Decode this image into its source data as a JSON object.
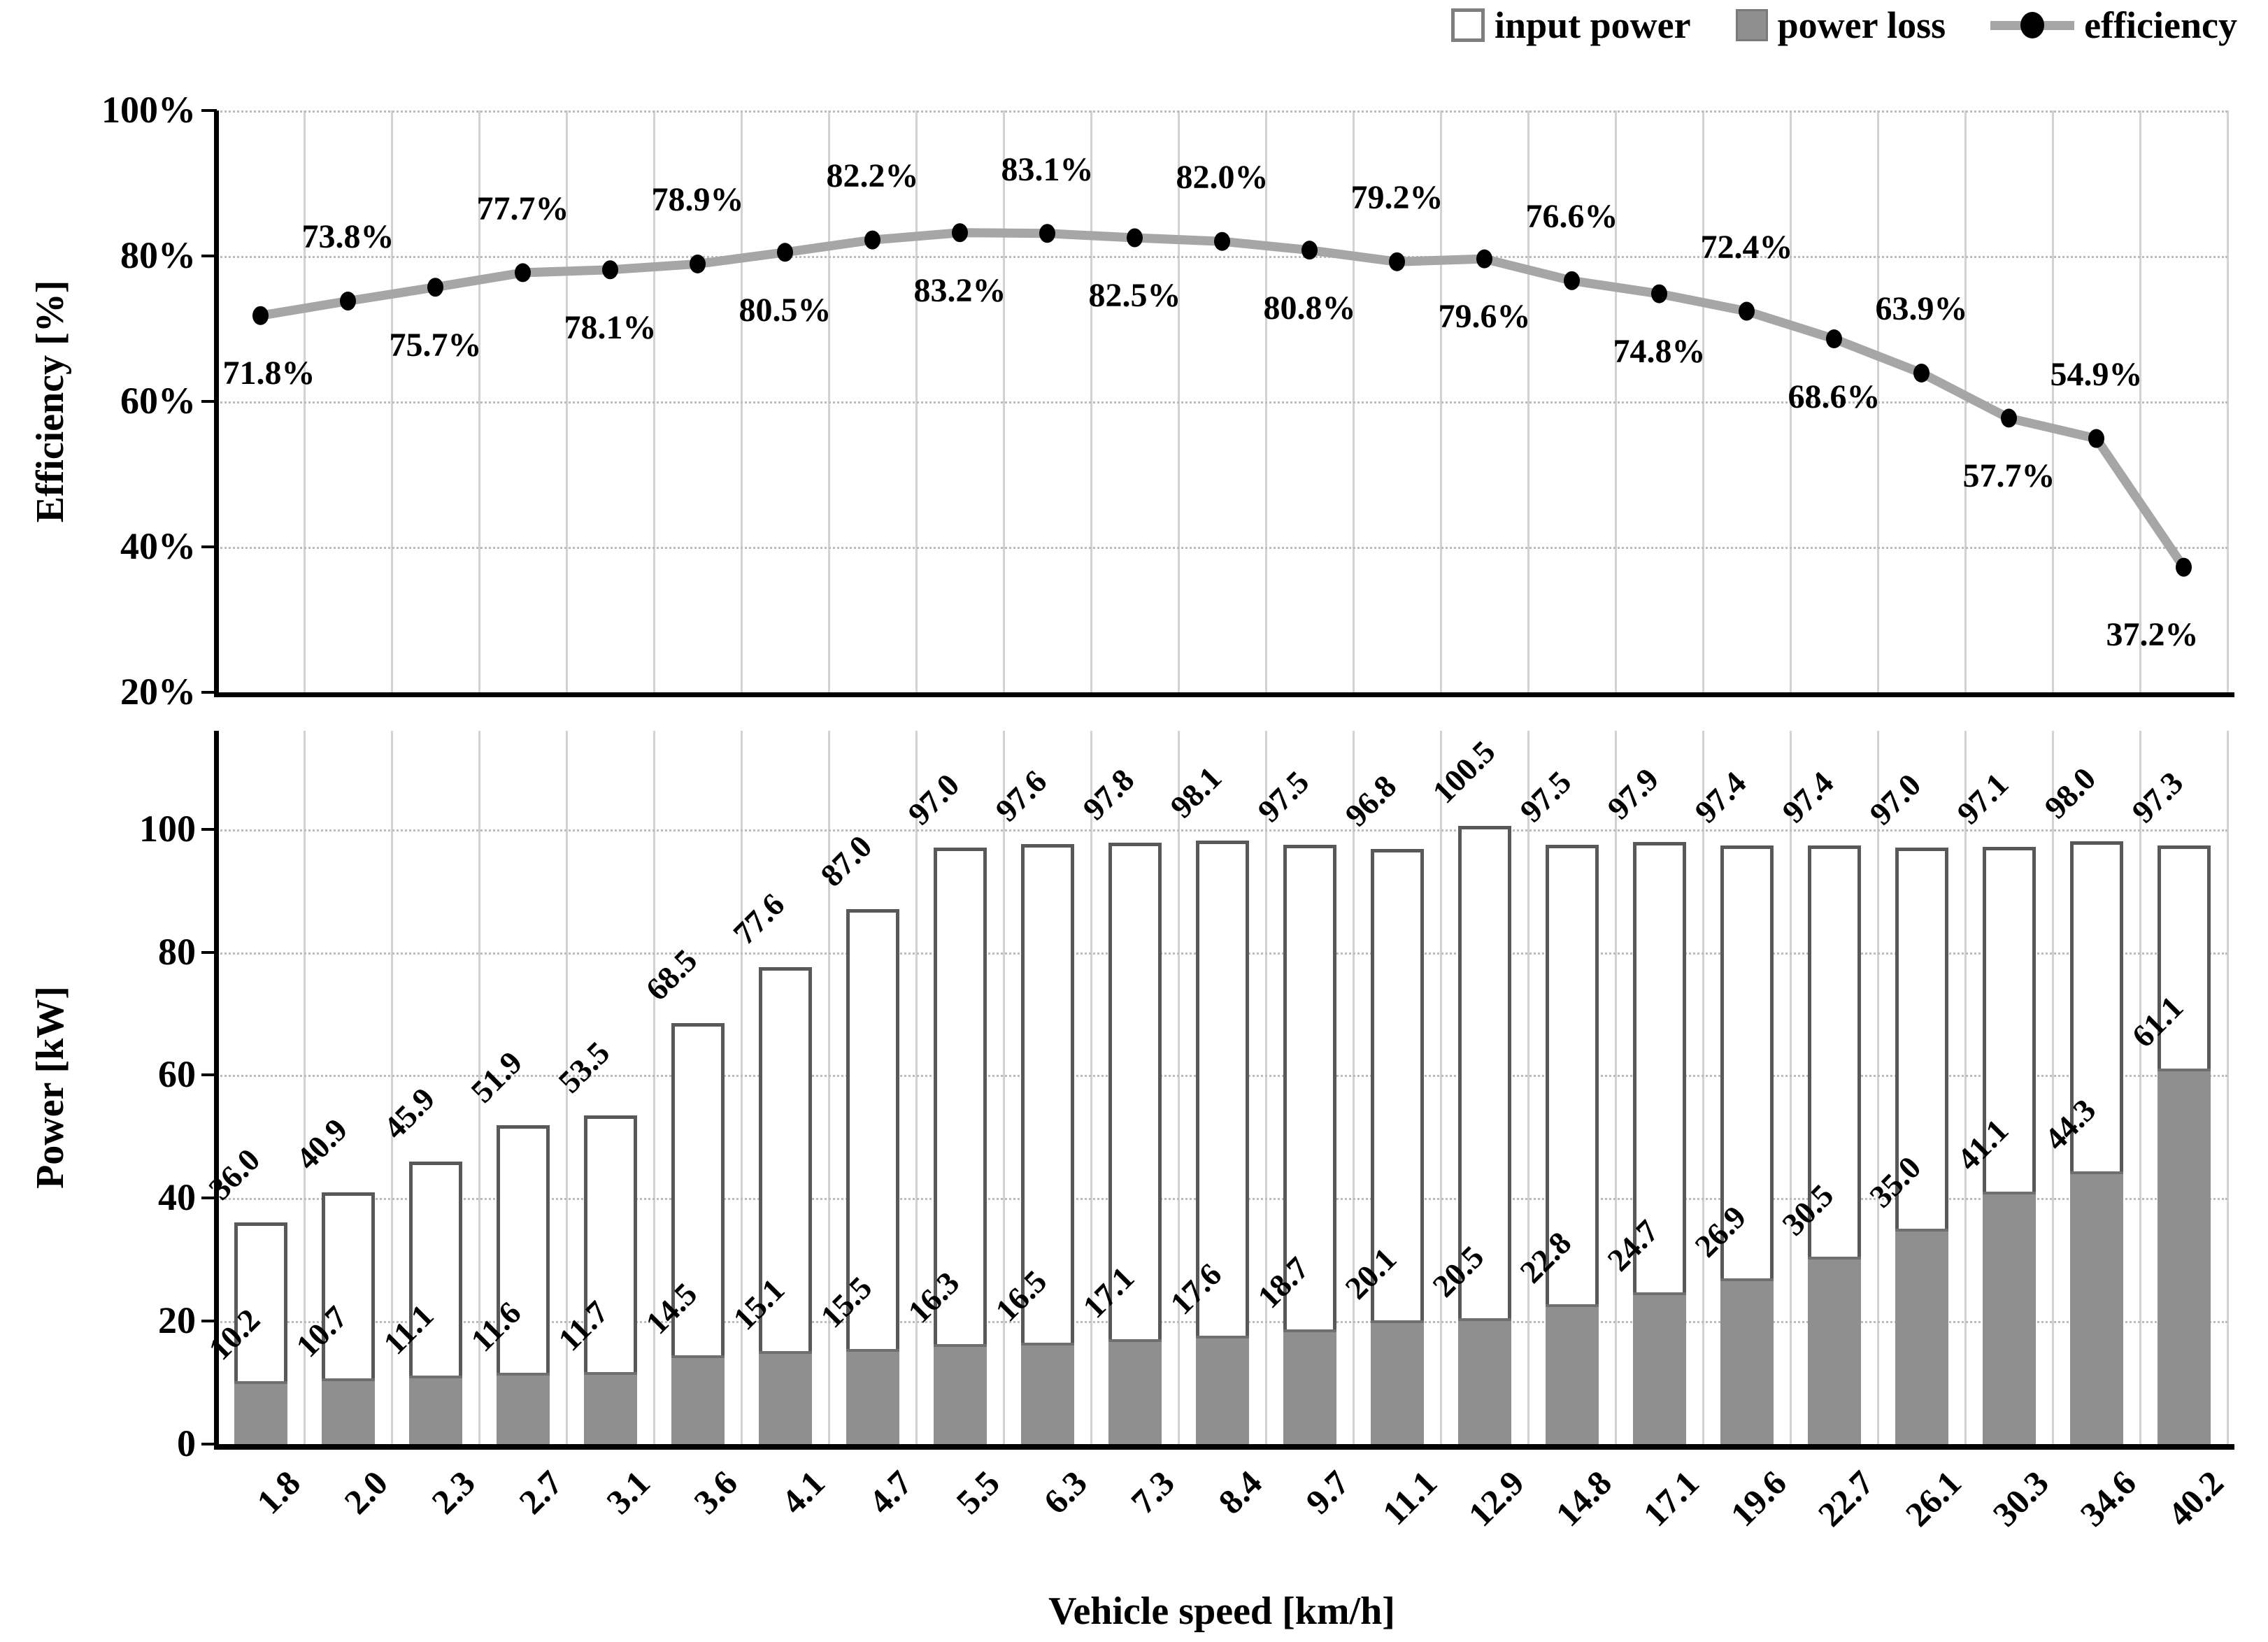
{
  "legend": {
    "input_power_label": "input power",
    "power_loss_label": "power loss",
    "efficiency_label": "efficiency"
  },
  "efficiency_axis": {
    "title": "Efficiency [%]",
    "tick_labels": [
      "100%",
      "80%",
      "60%",
      "40%",
      "20%"
    ],
    "tick_values": [
      100,
      80,
      60,
      40,
      20
    ]
  },
  "power_axis": {
    "title": "Power [kW]",
    "tick_labels": [
      "100",
      "80",
      "60",
      "40",
      "20",
      "0"
    ],
    "tick_values": [
      100,
      80,
      60,
      40,
      20,
      0
    ]
  },
  "x_axis": {
    "title": "Vehicle speed [km/h]"
  },
  "colors": {
    "bar_outline": "#595959",
    "input_power_fill": "#ffffff",
    "power_loss_fill": "#8f8f8f",
    "efficiency_line": "#a6a6a6",
    "marker": "#000000",
    "gridline": "#d2d2d2",
    "axis": "#000000"
  },
  "chart_data": [
    {
      "type": "line",
      "name": "efficiency",
      "ylabel": "Efficiency [%]",
      "ylim": [
        20,
        100
      ],
      "y_tick_labels": [
        "100%",
        "80%",
        "60%",
        "40%",
        "20%"
      ],
      "grid": "vertical solid at category boundaries, horizontal dotted at ticks",
      "legend_position": "top-right",
      "x_categories": [
        "1.8",
        "2.0",
        "2.3",
        "2.7",
        "3.1",
        "3.6",
        "4.1",
        "4.7",
        "5.5",
        "6.3",
        "7.3",
        "8.4",
        "9.7",
        "11.1",
        "12.9",
        "14.8",
        "17.1",
        "19.6",
        "22.7",
        "26.1",
        "30.3",
        "34.6",
        "40.2"
      ],
      "values": [
        71.8,
        73.8,
        75.7,
        77.7,
        78.1,
        78.9,
        80.5,
        82.2,
        83.2,
        83.1,
        82.5,
        82.0,
        80.8,
        79.2,
        79.6,
        76.6,
        74.8,
        72.4,
        68.6,
        63.9,
        57.7,
        54.9,
        37.2
      ],
      "point_labels": [
        "71.8%",
        "73.8%",
        "75.7%",
        "77.7%",
        "78.1%",
        "78.9%",
        "80.5%",
        "82.2%",
        "83.2%",
        "83.1%",
        "82.5%",
        "82.0%",
        "80.8%",
        "79.2%",
        "79.6%",
        "76.6%",
        "74.8%",
        "72.4%",
        "68.6%",
        "63.9%",
        "57.7%",
        "54.9%",
        "37.2%"
      ],
      "label_position": [
        "below",
        "above",
        "below",
        "above",
        "below",
        "above",
        "below",
        "above",
        "below",
        "above",
        "below",
        "above",
        "below",
        "above",
        "below",
        "above",
        "below",
        "above",
        "below",
        "above",
        "below",
        "above",
        "below"
      ]
    },
    {
      "type": "bar",
      "ylabel": "Power [kW]",
      "xlabel": "Vehicle speed [km/h]",
      "ylim": [
        0,
        116
      ],
      "y_ticks": [
        0,
        20,
        40,
        60,
        80,
        100
      ],
      "bar_style": "overlapped",
      "value_label_rotation_deg": -45,
      "categories": [
        "1.8",
        "2.0",
        "2.3",
        "2.7",
        "3.1",
        "3.6",
        "4.1",
        "4.7",
        "5.5",
        "6.3",
        "7.3",
        "8.4",
        "9.7",
        "11.1",
        "12.9",
        "14.8",
        "17.1",
        "19.6",
        "22.7",
        "26.1",
        "30.3",
        "34.6",
        "40.2"
      ],
      "series": [
        {
          "name": "input power",
          "values": [
            36.0,
            40.9,
            45.9,
            51.9,
            53.5,
            68.5,
            77.6,
            87.0,
            97.0,
            97.6,
            97.8,
            98.1,
            97.5,
            96.8,
            100.5,
            97.5,
            97.9,
            97.4,
            97.4,
            97.0,
            97.1,
            98.0,
            97.3
          ],
          "value_labels": [
            "36.0",
            "40.9",
            "45.9",
            "51.9",
            "53.5",
            "68.5",
            "77.6",
            "87.0",
            "97.0",
            "97.6",
            "97.8",
            "98.1",
            "97.5",
            "96.8",
            "100.5",
            "97.5",
            "97.9",
            "97.4",
            "97.4",
            "97.0",
            "97.1",
            "98.0",
            "97.3"
          ]
        },
        {
          "name": "power loss",
          "values": [
            10.2,
            10.7,
            11.1,
            11.6,
            11.7,
            14.5,
            15.1,
            15.5,
            16.3,
            16.5,
            17.1,
            17.6,
            18.7,
            20.1,
            20.5,
            22.8,
            24.7,
            26.9,
            30.5,
            35.0,
            41.1,
            44.3,
            61.1
          ],
          "value_labels": [
            "10.2",
            "10.7",
            "11.1",
            "11.6",
            "11.7",
            "14.5",
            "15.1",
            "15.5",
            "16.3",
            "16.5",
            "17.1",
            "17.6",
            "18.7",
            "20.1",
            "20.5",
            "22.8",
            "24.7",
            "26.9",
            "30.5",
            "35.0",
            "41.1",
            "44.3",
            "61.1"
          ]
        }
      ]
    }
  ]
}
